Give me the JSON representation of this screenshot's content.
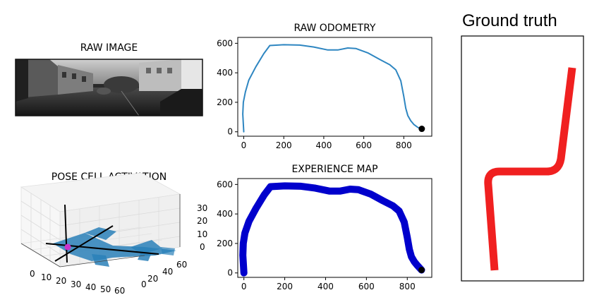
{
  "panels": {
    "raw_image": {
      "title": "RAW IMAGE"
    },
    "pose_cell": {
      "title": "POSE CELL ACTIVATION",
      "x_ticks": [
        "0",
        "10",
        "20",
        "30",
        "40",
        "50",
        "60"
      ],
      "y_ticks": [
        "0",
        "20",
        "40",
        "60"
      ],
      "z_ticks": [
        "0",
        "10",
        "20",
        "30"
      ]
    },
    "ground_truth": {
      "title": "Ground truth",
      "path_color": "#f02020"
    }
  },
  "chart_data": [
    {
      "type": "line",
      "title": "RAW ODOMETRY",
      "xlim": [
        -30,
        940
      ],
      "ylim": [
        -30,
        640
      ],
      "x_ticks": [
        0,
        200,
        400,
        600,
        800
      ],
      "y_ticks": [
        0,
        200,
        400,
        600
      ],
      "series": [
        {
          "name": "odometry",
          "color": "#2e86c1",
          "x": [
            0,
            -5,
            -2,
            8,
            25,
            60,
            100,
            130,
            200,
            280,
            350,
            420,
            470,
            520,
            560,
            620,
            680,
            730,
            760,
            785,
            800,
            810,
            820,
            835,
            850,
            870,
            890
          ],
          "y": [
            0,
            120,
            200,
            270,
            350,
            440,
            530,
            585,
            590,
            588,
            575,
            555,
            555,
            568,
            565,
            535,
            490,
            455,
            420,
            345,
            240,
            160,
            110,
            75,
            50,
            30,
            20
          ]
        }
      ],
      "end_marker": {
        "x": 890,
        "y": 20
      }
    },
    {
      "type": "line",
      "title": "EXPERIENCE MAP",
      "xlim": [
        -30,
        920
      ],
      "ylim": [
        -30,
        640
      ],
      "x_ticks": [
        0,
        200,
        400,
        600,
        800
      ],
      "y_ticks": [
        0,
        200,
        400,
        600
      ],
      "series": [
        {
          "name": "experiences",
          "color": "#0000cc",
          "x": [
            0,
            -5,
            -3,
            5,
            25,
            60,
            100,
            130,
            200,
            280,
            350,
            420,
            470,
            520,
            560,
            620,
            680,
            730,
            760,
            785,
            800,
            810,
            820,
            835,
            850,
            870
          ],
          "y": [
            0,
            120,
            200,
            270,
            350,
            440,
            530,
            585,
            590,
            588,
            575,
            555,
            555,
            568,
            565,
            535,
            490,
            455,
            420,
            345,
            240,
            160,
            110,
            75,
            50,
            20
          ]
        }
      ],
      "end_marker": {
        "x": 870,
        "y": 20
      }
    }
  ]
}
